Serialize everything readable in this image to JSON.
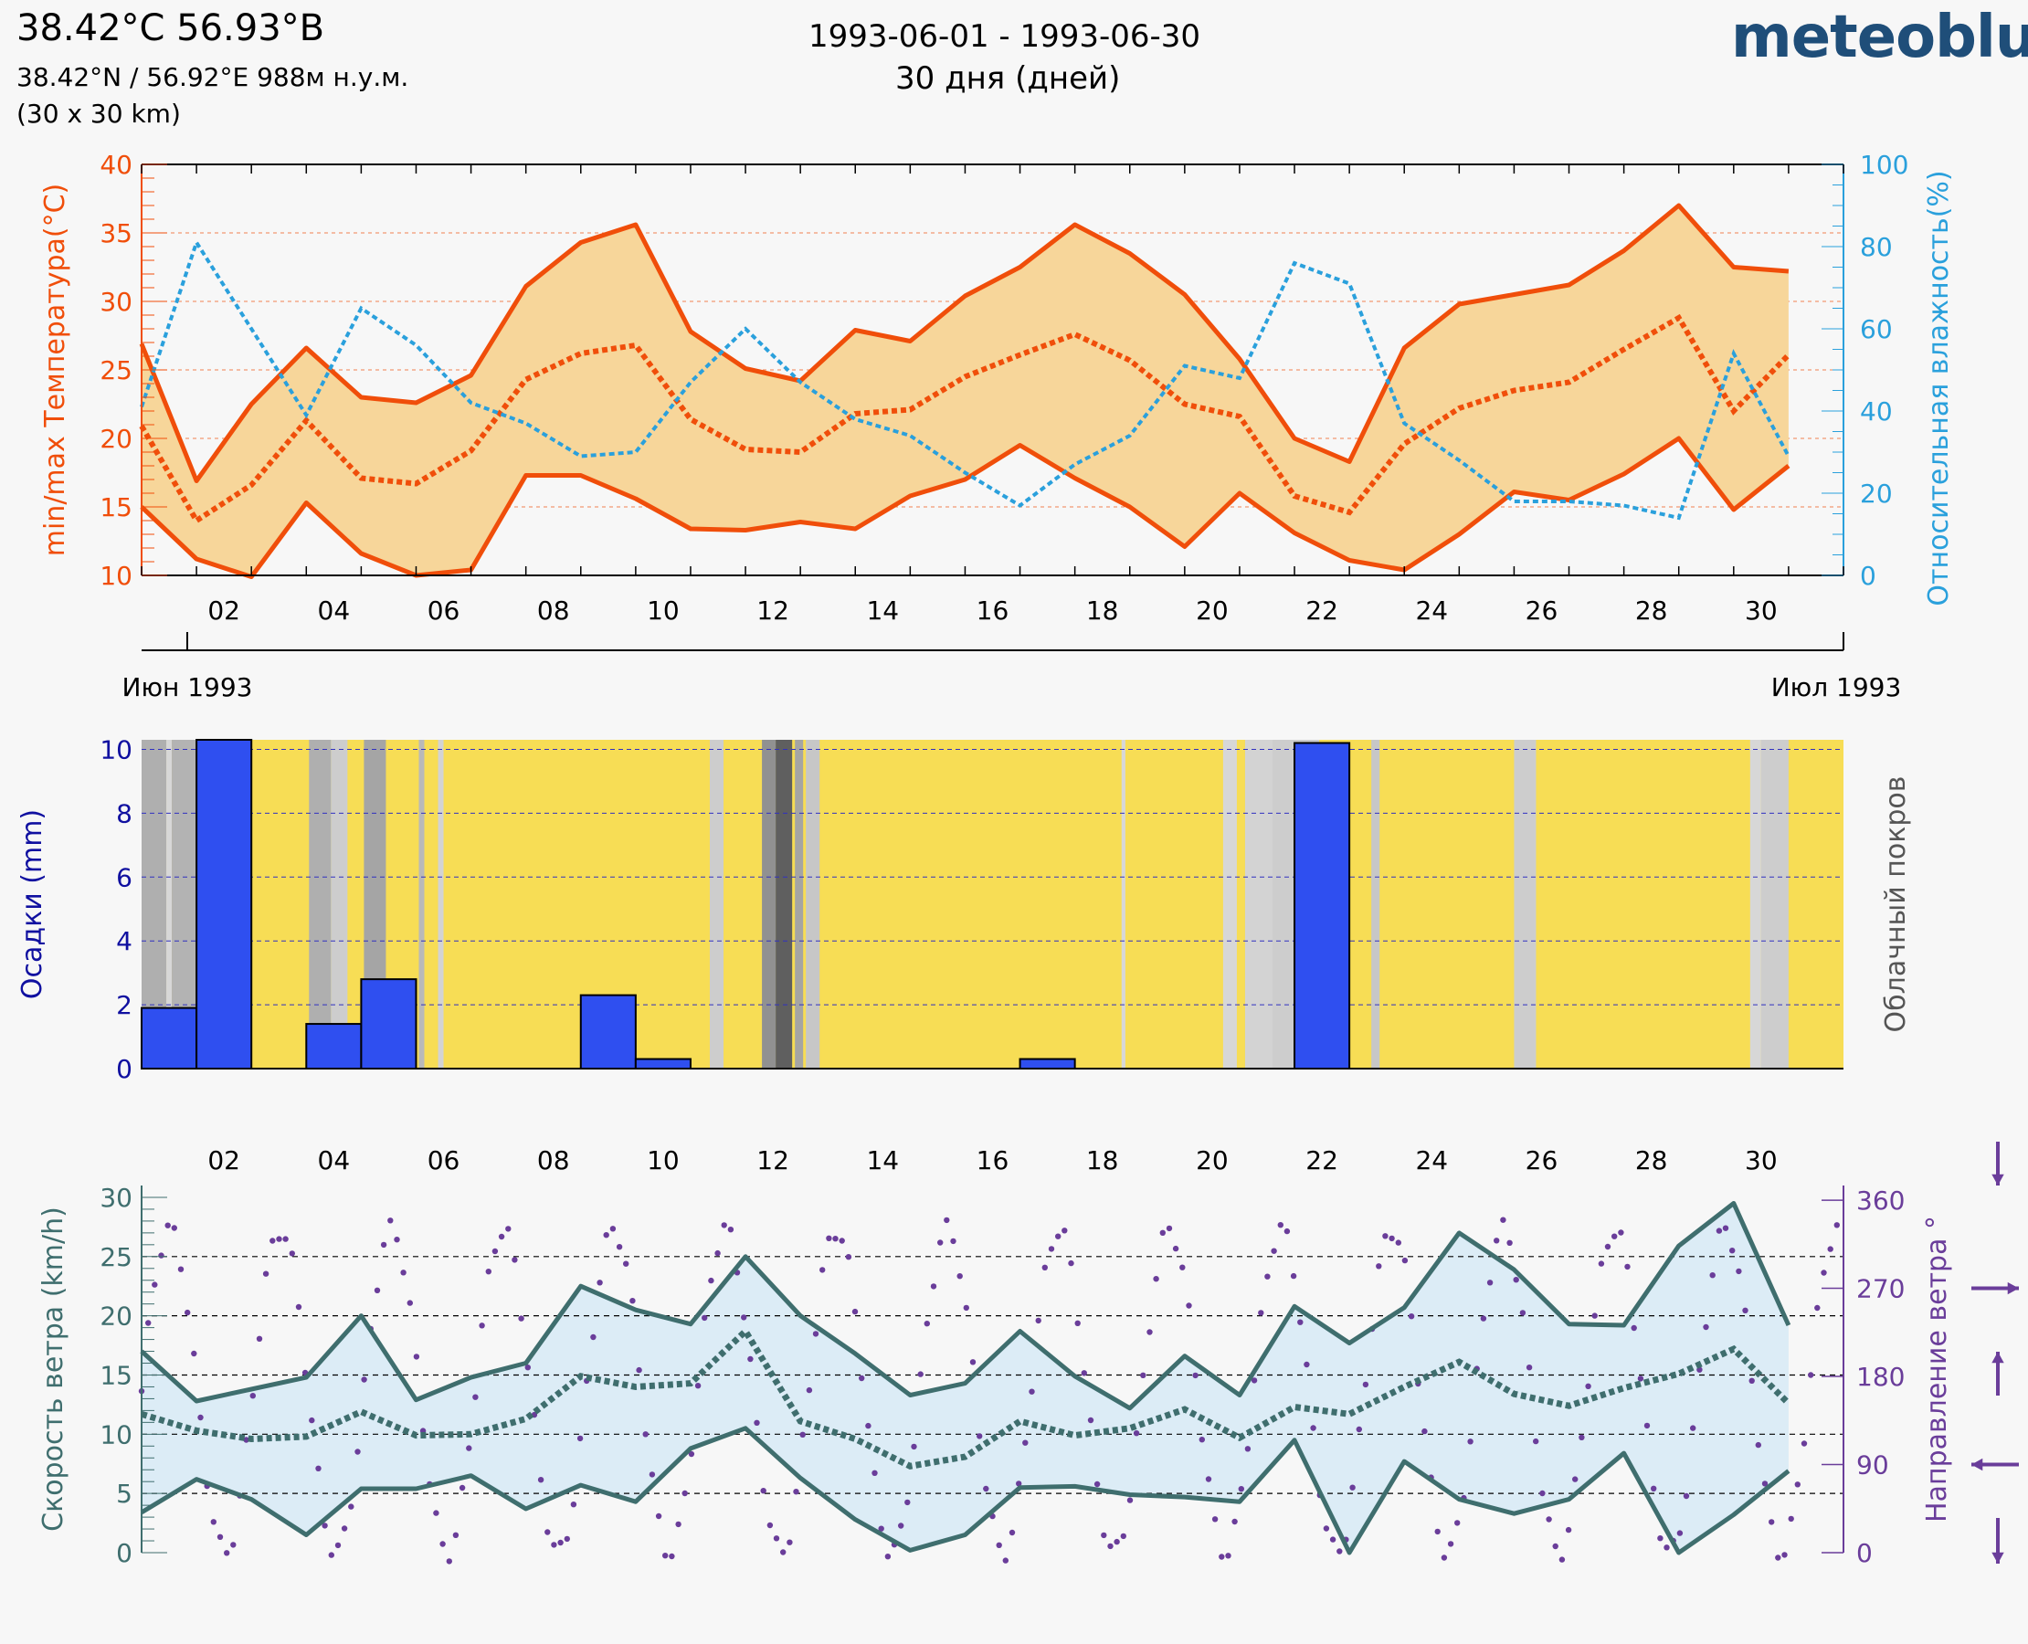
{
  "header": {
    "title": "38.42°C 56.93°B",
    "coords": "38.42°N / 56.92°E   988м н.у.м.",
    "resolution": "(30 x 30 km)",
    "date_range": "1993-06-01 - 1993-06-30",
    "days": "30 дня (дней)",
    "logo": "meteoblue"
  },
  "colors": {
    "temp": "#f04e0a",
    "temp_fill": "#f7d69a",
    "humidity": "#2aa0dc",
    "precip": "#2f4ff0",
    "precip_axis": "#1010a0",
    "cloud_sun": "#f7dd55",
    "wind": "#3f6e6e",
    "wind_fill": "#dcecf6",
    "direction": "#6a3d9a"
  },
  "month_labels": {
    "start": "Июн 1993",
    "end": "Июл 1993"
  },
  "chart_data": [
    {
      "type": "area",
      "name": "temperature",
      "ylabel": "min/max Температура(°C)",
      "ylim": [
        10,
        40
      ],
      "yticks": [
        "10",
        "15",
        "20",
        "25",
        "30",
        "35",
        "40"
      ],
      "xticks": [
        "02",
        "04",
        "06",
        "08",
        "10",
        "12",
        "14",
        "16",
        "18",
        "20",
        "22",
        "24",
        "26",
        "28",
        "30"
      ],
      "series": [
        {
          "name": "max",
          "values": [
            26.9,
            16.9,
            22.5,
            26.6,
            23.0,
            22.6,
            24.6,
            31.1,
            34.3,
            35.6,
            27.8,
            25.1,
            24.2,
            27.9,
            27.1,
            30.4,
            32.5,
            35.6,
            33.5,
            30.5,
            25.8,
            20.0,
            18.3,
            26.6,
            29.8,
            30.5,
            31.2,
            33.7,
            37.0,
            32.5,
            32.2
          ]
        },
        {
          "name": "mean",
          "values": [
            20.9,
            14.0,
            16.6,
            21.3,
            17.1,
            16.7,
            19.1,
            24.3,
            26.2,
            26.8,
            21.4,
            19.2,
            19.0,
            21.8,
            22.1,
            24.5,
            26.1,
            27.6,
            25.7,
            22.5,
            21.6,
            15.8,
            14.6,
            19.6,
            22.2,
            23.5,
            24.1,
            26.5,
            28.8,
            22.0,
            26.1
          ]
        },
        {
          "name": "min",
          "values": [
            15.0,
            11.2,
            9.9,
            15.3,
            11.6,
            10.0,
            10.4,
            17.3,
            17.3,
            15.6,
            13.4,
            13.3,
            13.9,
            13.4,
            15.8,
            17.0,
            19.5,
            17.1,
            15.0,
            12.1,
            16.0,
            13.1,
            11.1,
            10.4,
            13.0,
            16.1,
            15.5,
            17.4,
            20.0,
            14.8,
            18.0
          ]
        },
        {
          "name": "Относительная влажность(%)",
          "axis": "right",
          "ylim": [
            0,
            100
          ],
          "yticks": [
            "0",
            "20",
            "40",
            "60",
            "80",
            "100"
          ],
          "values": [
            41,
            81,
            60,
            39,
            65,
            56,
            42,
            37,
            29,
            30,
            47,
            60,
            47,
            38,
            34,
            25,
            17,
            27,
            34,
            51,
            48,
            76,
            71,
            37,
            28,
            18,
            18,
            17,
            14,
            54,
            29
          ]
        }
      ]
    },
    {
      "type": "bar",
      "name": "precipitation",
      "ylabel": "Осадки (mm)",
      "y2label": "Облачный покров",
      "ylim": [
        0,
        10
      ],
      "yticks": [
        "0",
        "2",
        "4",
        "6",
        "8",
        "10"
      ],
      "bars": [
        [
          0,
          1.9
        ],
        [
          1,
          10.3
        ],
        [
          3,
          1.4
        ],
        [
          4,
          2.8
        ],
        [
          8,
          2.3
        ],
        [
          9,
          0.3
        ],
        [
          16,
          0.3
        ],
        [
          21,
          10.2
        ]
      ],
      "cloud_gray": [
        [
          0.0,
          0.45,
          0.3
        ],
        [
          0.45,
          0.55,
          0.1
        ],
        [
          0.55,
          1.05,
          0.28
        ],
        [
          3.05,
          3.45,
          0.3
        ],
        [
          3.45,
          3.75,
          0.15
        ],
        [
          4.05,
          4.45,
          0.35
        ],
        [
          5.05,
          5.15,
          0.25
        ],
        [
          5.4,
          5.5,
          0.12
        ],
        [
          10.35,
          10.6,
          0.15
        ],
        [
          11.3,
          11.55,
          0.45
        ],
        [
          11.55,
          11.85,
          0.7
        ],
        [
          11.9,
          12.05,
          0.35
        ],
        [
          12.1,
          12.35,
          0.18
        ],
        [
          17.85,
          17.92,
          0.1
        ],
        [
          19.7,
          19.95,
          0.1
        ],
        [
          20.1,
          20.6,
          0.12
        ],
        [
          20.6,
          21.45,
          0.15
        ],
        [
          22.4,
          22.55,
          0.18
        ],
        [
          25.0,
          25.4,
          0.15
        ],
        [
          29.3,
          29.5,
          0.1
        ],
        [
          29.5,
          30.0,
          0.15
        ]
      ]
    },
    {
      "type": "line",
      "name": "wind",
      "ylabel": "Скорость ветра (km/h)",
      "y2label": "Направление ветра °",
      "ylim": [
        0,
        30
      ],
      "yticks": [
        "0",
        "5",
        "10",
        "15",
        "20",
        "25",
        "30"
      ],
      "y2ticks": [
        "0",
        "90",
        "180",
        "270",
        "360"
      ],
      "series": [
        {
          "name": "max",
          "values": [
            17.0,
            12.8,
            13.8,
            14.8,
            20.0,
            12.9,
            14.8,
            16.0,
            22.5,
            20.5,
            19.3,
            25.0,
            20.0,
            16.8,
            13.3,
            14.3,
            18.7,
            14.9,
            12.2,
            16.6,
            13.3,
            20.8,
            17.7,
            20.7,
            27.0,
            23.9,
            19.3,
            19.2,
            25.9,
            29.5,
            19.2
          ]
        },
        {
          "name": "mean",
          "values": [
            11.7,
            10.3,
            9.6,
            9.8,
            11.9,
            9.9,
            10.0,
            11.3,
            14.9,
            14.0,
            14.3,
            18.7,
            11.1,
            9.6,
            7.3,
            8.1,
            11.1,
            9.9,
            10.5,
            12.1,
            9.7,
            12.3,
            11.7,
            14.0,
            16.1,
            13.4,
            12.4,
            13.9,
            15.1,
            17.2,
            12.6
          ]
        },
        {
          "name": "min",
          "values": [
            3.4,
            6.2,
            4.5,
            1.5,
            5.4,
            5.4,
            6.5,
            3.7,
            5.7,
            4.3,
            8.8,
            10.5,
            6.3,
            2.8,
            0.2,
            1.5,
            5.5,
            5.6,
            4.9,
            4.7,
            4.3,
            9.5,
            0.0,
            7.7,
            4.5,
            3.3,
            4.5,
            8.4,
            0.0,
            3.2,
            6.9
          ]
        }
      ]
    }
  ]
}
